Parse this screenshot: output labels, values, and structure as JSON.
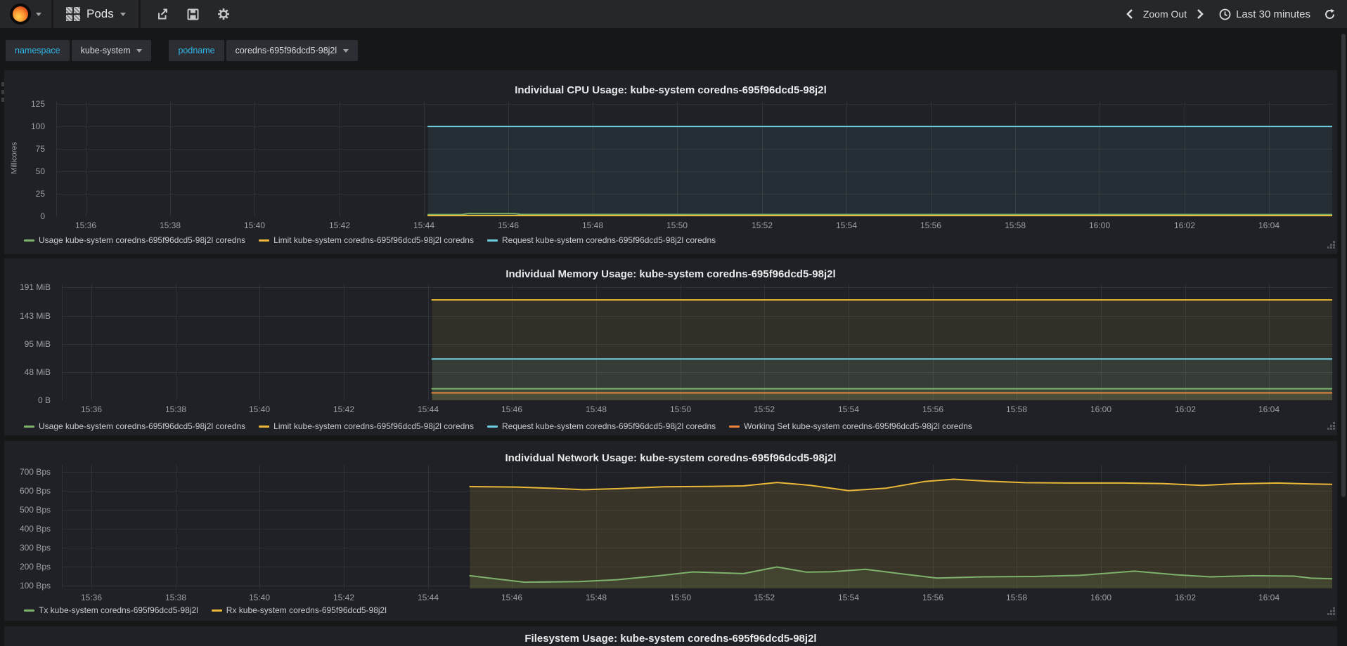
{
  "navbar": {
    "dashboard_title": "Pods",
    "zoom_out_label": "Zoom Out",
    "time_range_label": "Last 30 minutes"
  },
  "submenu": {
    "variables": [
      {
        "label": "namespace",
        "value": "kube-system"
      },
      {
        "label": "podname",
        "value": "coredns-695f96dcd5-98j2l"
      }
    ]
  },
  "colors": {
    "green": "#7eb26d",
    "yellow": "#eab839",
    "blue": "#6ed0e0",
    "orange": "#ef843c",
    "grid": "#2f3236"
  },
  "time_axis": {
    "range": [
      935.3,
      965.5
    ],
    "ticks": [
      {
        "v": 936,
        "label": "15:36"
      },
      {
        "v": 938,
        "label": "15:38"
      },
      {
        "v": 940,
        "label": "15:40"
      },
      {
        "v": 942,
        "label": "15:42"
      },
      {
        "v": 944,
        "label": "15:44"
      },
      {
        "v": 946,
        "label": "15:46"
      },
      {
        "v": 948,
        "label": "15:48"
      },
      {
        "v": 950,
        "label": "15:50"
      },
      {
        "v": 952,
        "label": "15:52"
      },
      {
        "v": 954,
        "label": "15:54"
      },
      {
        "v": 956,
        "label": "15:56"
      },
      {
        "v": 958,
        "label": "15:58"
      },
      {
        "v": 960,
        "label": "16:00"
      },
      {
        "v": 962,
        "label": "16:02"
      },
      {
        "v": 964,
        "label": "16:04"
      }
    ]
  },
  "chart_data": [
    {
      "type": "line",
      "title": "Individual CPU Usage: kube-system coredns-695f96dcd5-98j2l",
      "ylabel": "Millicores",
      "grid": true,
      "legend_position": "bottom-left",
      "fill_opacity": 0.08,
      "y_range": [
        0,
        127.4
      ],
      "y_ticks": [
        {
          "v": 0,
          "label": "0"
        },
        {
          "v": 25,
          "label": "25"
        },
        {
          "v": 50,
          "label": "50"
        },
        {
          "v": 75,
          "label": "75"
        },
        {
          "v": 100,
          "label": "100"
        },
        {
          "v": 125,
          "label": "125"
        }
      ],
      "series": [
        {
          "label": "Usage kube-system coredns-695f96dcd5-98j2l coredns",
          "color": "#7eb26d",
          "points": [
            [
              944.1,
              1.9
            ],
            [
              944.9,
              1.9
            ],
            [
              945.05,
              3.0
            ],
            [
              946.15,
              3.0
            ],
            [
              946.3,
              2.0
            ],
            [
              965.5,
              1.9
            ]
          ]
        },
        {
          "label": "Limit kube-system coredns-695f96dcd5-98j2l coredns",
          "color": "#eab839",
          "points": [
            [
              944.1,
              0.8
            ],
            [
              965.5,
              0.8
            ]
          ]
        },
        {
          "label": "Request kube-system coredns-695f96dcd5-98j2l coredns",
          "color": "#6ed0e0",
          "points": [
            [
              944.1,
              100
            ],
            [
              965.5,
              100
            ]
          ]
        }
      ]
    },
    {
      "type": "line",
      "title": "Individual Memory Usage: kube-system coredns-695f96dcd5-98j2l",
      "ylabel": "",
      "grid": true,
      "legend_position": "bottom-left",
      "fill_opacity": 0.09,
      "y_range": [
        0,
        196.3
      ],
      "y_ticks": [
        {
          "v": 0,
          "label": "0 B"
        },
        {
          "v": 48,
          "label": "48 MiB"
        },
        {
          "v": 95,
          "label": "95 MiB"
        },
        {
          "v": 143,
          "label": "143 MiB"
        },
        {
          "v": 191,
          "label": "191 MiB"
        }
      ],
      "series": [
        {
          "label": "Usage kube-system coredns-695f96dcd5-98j2l coredns",
          "color": "#7eb26d",
          "points": [
            [
              944.1,
              19.5
            ],
            [
              965.5,
              19.5
            ]
          ]
        },
        {
          "label": "Limit kube-system coredns-695f96dcd5-98j2l coredns",
          "color": "#eab839",
          "points": [
            [
              944.1,
              170
            ],
            [
              965.5,
              170
            ]
          ]
        },
        {
          "label": "Request kube-system coredns-695f96dcd5-98j2l coredns",
          "color": "#6ed0e0",
          "points": [
            [
              944.1,
              70
            ],
            [
              965.5,
              70
            ]
          ]
        },
        {
          "label": "Working Set kube-system coredns-695f96dcd5-98j2l coredns",
          "color": "#ef843c",
          "points": [
            [
              944.1,
              12.5
            ],
            [
              965.5,
              12.5
            ]
          ]
        }
      ]
    },
    {
      "type": "line",
      "title": "Individual Network Usage: kube-system coredns-695f96dcd5-98j2l",
      "ylabel": "",
      "grid": true,
      "legend_position": "bottom-left",
      "fill_opacity": 0.13,
      "y_range": [
        85,
        737
      ],
      "y_ticks": [
        {
          "v": 100,
          "label": "100 Bps"
        },
        {
          "v": 200,
          "label": "200 Bps"
        },
        {
          "v": 300,
          "label": "300 Bps"
        },
        {
          "v": 400,
          "label": "400 Bps"
        },
        {
          "v": 500,
          "label": "500 Bps"
        },
        {
          "v": 600,
          "label": "600 Bps"
        },
        {
          "v": 700,
          "label": "700 Bps"
        }
      ],
      "series": [
        {
          "label": "Tx kube-system coredns-695f96dcd5-98j2l",
          "color": "#7eb26d",
          "points": [
            [
              945.0,
              152
            ],
            [
              945.6,
              136
            ],
            [
              946.3,
              118
            ],
            [
              947.6,
              121
            ],
            [
              948.5,
              131
            ],
            [
              949.5,
              152
            ],
            [
              950.3,
              172
            ],
            [
              951.0,
              167
            ],
            [
              951.5,
              163
            ],
            [
              952.3,
              198
            ],
            [
              953.0,
              171
            ],
            [
              953.6,
              173
            ],
            [
              954.4,
              186
            ],
            [
              955.3,
              161
            ],
            [
              956.1,
              140
            ],
            [
              957.2,
              146
            ],
            [
              958.4,
              148
            ],
            [
              959.5,
              154
            ],
            [
              960.8,
              176
            ],
            [
              961.8,
              157
            ],
            [
              962.6,
              146
            ],
            [
              963.6,
              152
            ],
            [
              964.6,
              150
            ],
            [
              965.0,
              139
            ],
            [
              965.5,
              136
            ]
          ]
        },
        {
          "label": "Rx kube-system coredns-695f96dcd5-98j2l",
          "color": "#eab839",
          "points": [
            [
              945.0,
              622
            ],
            [
              946.1,
              620
            ],
            [
              947.0,
              613
            ],
            [
              947.7,
              606
            ],
            [
              948.6,
              612
            ],
            [
              949.6,
              621
            ],
            [
              950.6,
              623
            ],
            [
              951.5,
              626
            ],
            [
              952.3,
              644
            ],
            [
              953.1,
              629
            ],
            [
              954.0,
              601
            ],
            [
              954.9,
              614
            ],
            [
              955.8,
              649
            ],
            [
              956.5,
              661
            ],
            [
              957.3,
              651
            ],
            [
              958.2,
              643
            ],
            [
              959.3,
              641
            ],
            [
              960.5,
              641
            ],
            [
              961.5,
              638
            ],
            [
              962.4,
              629
            ],
            [
              963.2,
              637
            ],
            [
              964.2,
              641
            ],
            [
              965.0,
              636
            ],
            [
              965.5,
              634
            ]
          ]
        }
      ]
    },
    {
      "type": "line",
      "title": "Filesystem Usage: kube-system coredns-695f96dcd5-98j2l"
    }
  ]
}
